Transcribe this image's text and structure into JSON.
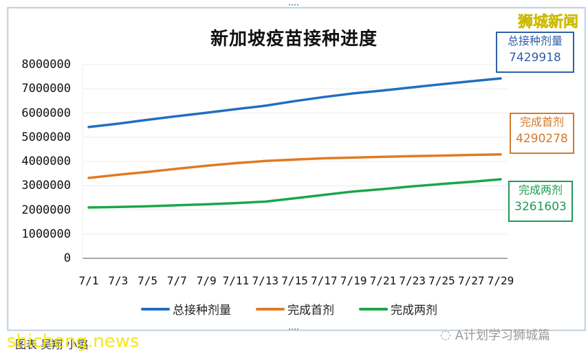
{
  "chart_data": {
    "type": "line",
    "title": "新加坡疫苗接种进度",
    "xlabel": "",
    "ylabel": "",
    "ylim": [
      0,
      8000000
    ],
    "yticks": [
      0,
      1000000,
      2000000,
      3000000,
      4000000,
      5000000,
      6000000,
      7000000,
      8000000
    ],
    "ytick_labels": [
      "0",
      "1000000",
      "2000000",
      "3000000",
      "4000000",
      "5000000",
      "6000000",
      "7000000",
      "8000000"
    ],
    "x_tick_labels": [
      "7/1",
      "7/3",
      "7/5",
      "7/7",
      "7/9",
      "7/11",
      "7/13",
      "7/15",
      "7/17",
      "7/19",
      "7/21",
      "7/23",
      "7/25",
      "7/27",
      "7/29"
    ],
    "x": [
      "7/1",
      "7/3",
      "7/5",
      "7/7",
      "7/9",
      "7/11",
      "7/13",
      "7/15",
      "7/17",
      "7/19",
      "7/21",
      "7/23",
      "7/25",
      "7/27",
      "7/29"
    ],
    "grid": true,
    "legend_position": "bottom",
    "series": [
      {
        "name": "总接种剂量",
        "color": "#1f6fbf",
        "values": [
          5420000,
          5560000,
          5720000,
          5870000,
          6010000,
          6160000,
          6300000,
          6490000,
          6660000,
          6810000,
          6930000,
          7060000,
          7190000,
          7310000,
          7429918
        ]
      },
      {
        "name": "完成首剂",
        "color": "#e07a22",
        "values": [
          3320000,
          3450000,
          3570000,
          3700000,
          3820000,
          3930000,
          4020000,
          4080000,
          4130000,
          4160000,
          4190000,
          4220000,
          4240000,
          4270000,
          4290278
        ]
      },
      {
        "name": "完成两剂",
        "color": "#1aa64a",
        "values": [
          2100000,
          2120000,
          2150000,
          2190000,
          2230000,
          2280000,
          2340000,
          2480000,
          2620000,
          2760000,
          2860000,
          2970000,
          3070000,
          3160000,
          3261603
        ]
      }
    ],
    "annotations": [
      {
        "label": "总接种剂量",
        "value": "7429918"
      },
      {
        "label": "完成首剂",
        "value": "4290278"
      },
      {
        "label": "完成两剂",
        "value": "3261603"
      }
    ]
  },
  "brand": "狮城新闻",
  "callouts": [
    {
      "label": "总接种剂量",
      "value": "7429918",
      "color": "#2e5fa8"
    },
    {
      "label": "完成首剂",
      "value": "4290278",
      "color": "#d2782a"
    },
    {
      "label": "完成两剂",
      "value": "3261603",
      "color": "#1f9a55"
    }
  ],
  "caption": "图表    吴翔 小璐",
  "watermark_left": "shicheng.news",
  "watermark_right": "A计划学习狮城篇"
}
